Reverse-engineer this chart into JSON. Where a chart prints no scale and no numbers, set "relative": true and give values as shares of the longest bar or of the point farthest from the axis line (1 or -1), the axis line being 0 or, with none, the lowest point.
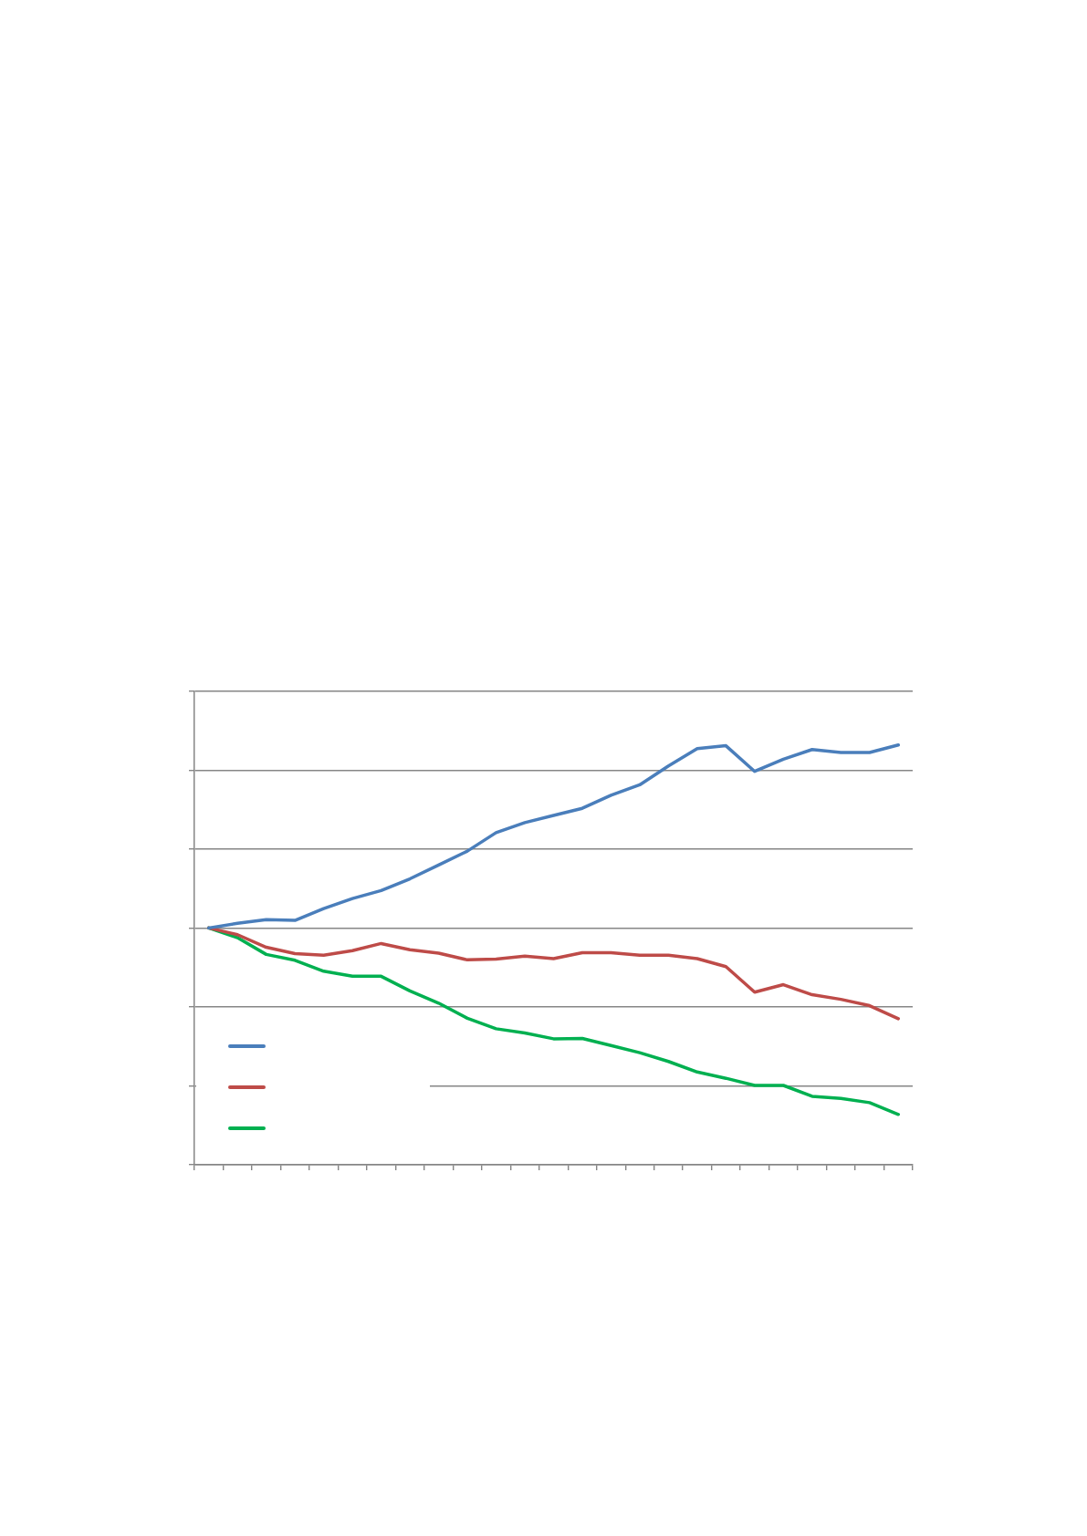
{
  "chart_data": {
    "type": "line",
    "relative": true,
    "categories": [
      null,
      null,
      null,
      null,
      null,
      null,
      null,
      null,
      null,
      null,
      null,
      null,
      null,
      null,
      null,
      null,
      null,
      null,
      null,
      null,
      null,
      null,
      null,
      null,
      null
    ],
    "series": [
      {
        "color": "#4a7ebb",
        "values": [
          0.564,
          0.575,
          0.584,
          0.582,
          0.61,
          0.634,
          0.653,
          0.681,
          0.714,
          0.747,
          0.791,
          0.815,
          0.832,
          0.849,
          0.88,
          0.905,
          0.95,
          0.991,
          0.998,
          0.937,
          0.966,
          0.989,
          0.982,
          0.982,
          1.0
        ]
      },
      {
        "color": "#be4b48",
        "values": [
          0.564,
          0.548,
          0.518,
          0.503,
          0.499,
          0.51,
          0.527,
          0.512,
          0.504,
          0.488,
          0.49,
          0.497,
          0.491,
          0.505,
          0.505,
          0.499,
          0.499,
          0.491,
          0.472,
          0.411,
          0.429,
          0.405,
          0.394,
          0.379,
          0.348
        ]
      },
      {
        "color": "#00b050",
        "values": [
          0.564,
          0.541,
          0.501,
          0.487,
          0.461,
          0.449,
          0.449,
          0.414,
          0.385,
          0.349,
          0.324,
          0.314,
          0.3,
          0.301,
          0.284,
          0.267,
          0.246,
          0.221,
          0.206,
          0.189,
          0.189,
          0.163,
          0.158,
          0.148,
          0.12
        ]
      }
    ],
    "grid": "y",
    "tick_labels": false,
    "marker": "none",
    "line_style": "solid"
  }
}
